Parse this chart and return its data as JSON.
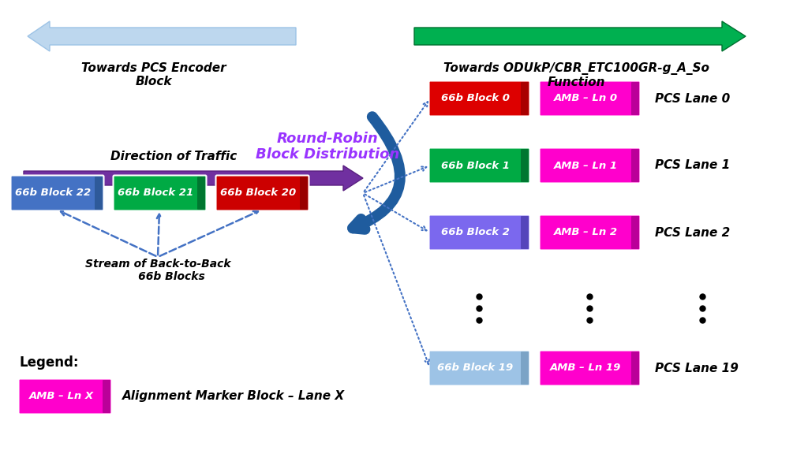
{
  "left_arrow_text": "Towards PCS Encoder\nBlock",
  "right_arrow_text": "Towards ODUkP/CBR_ETC100GR-g_A_So\nFunction",
  "traffic_text": "Direction of Traffic",
  "round_robin_text": "Round-Robin\nBlock Distribution",
  "round_robin_color": "#9933FF",
  "input_blocks": [
    {
      "label": "66b Block 22",
      "color": "#4472C4",
      "stripe": "#2E5A9A"
    },
    {
      "label": "66b Block 21",
      "color": "#00AA44",
      "stripe": "#007730"
    },
    {
      "label": "66b Block 20",
      "color": "#CC0000",
      "stripe": "#990000"
    }
  ],
  "lanes": [
    {
      "block_label": "66b Block 0",
      "block_color": "#DD0000",
      "block_stripe": "#AA0000",
      "amb_label": "AMB – Ln 0",
      "lane_label": "PCS Lane 0"
    },
    {
      "block_label": "66b Block 1",
      "block_color": "#00AA44",
      "block_stripe": "#007730",
      "amb_label": "AMB – Ln 1",
      "lane_label": "PCS Lane 1"
    },
    {
      "block_label": "66b Block 2",
      "block_color": "#7B68EE",
      "block_stripe": "#5545BB",
      "amb_label": "AMB – Ln 2",
      "lane_label": "PCS Lane 2"
    },
    {
      "block_label": "66b Block 19",
      "block_color": "#9DC3E6",
      "block_stripe": "#7BA3C6",
      "amb_label": "AMB – Ln 19",
      "lane_label": "PCS Lane 19"
    }
  ],
  "amb_color": "#FF00CC",
  "amb_stripe": "#BB0099",
  "legend_amb_label": "AMB – Ln X",
  "legend_text": "Alignment Marker Block – Lane X",
  "background_color": "#FFFFFF",
  "left_arrow_fc": "#BDD7EE",
  "left_arrow_ec": "#9DC3E6",
  "right_arrow_fc": "#00B050",
  "right_arrow_ec": "#007030",
  "traffic_arrow_fc": "#7030A0",
  "traffic_arrow_ec": "#5A2080",
  "curved_arrow_color": "#1F5C9E",
  "dotted_line_color": "#4472C4",
  "dashed_line_color": "#4472C4"
}
